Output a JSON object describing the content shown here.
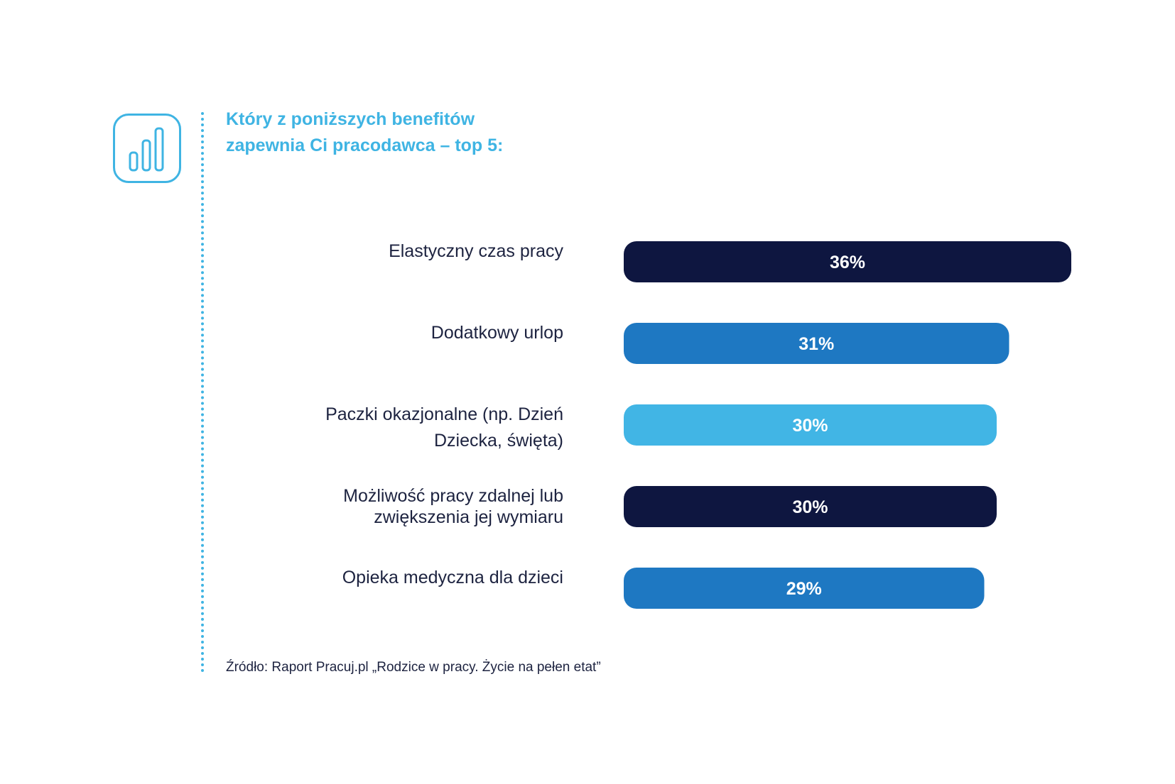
{
  "title_lines": [
    "Który z poniższych benefitów",
    "zapewnia Ci pracodawca – top 5:"
  ],
  "source": "Źródło: Raport Pracuj.pl „Rodzice w pracy. Życie na pełen etat”",
  "icon": "bar-chart-icon",
  "colors": {
    "accent": "#3fb4e3",
    "navy": "#0e1640",
    "blue": "#1e78c2",
    "light_blue": "#41b5e5"
  },
  "chart_data": {
    "type": "bar",
    "orientation": "horizontal",
    "categories": [
      [
        "Elastyczny czas pracy"
      ],
      [
        "Dodatkowy urlop"
      ],
      [
        "Paczki okazjonalne (np. Dzień",
        "Dziecka, święta)"
      ],
      [
        "Możliwość pracy zdalnej lub",
        "zwiększenia jej wymiaru"
      ],
      [
        "Opieka medyczna dla dzieci"
      ]
    ],
    "values": [
      36,
      31,
      30,
      30,
      29
    ],
    "data_labels": [
      "36%",
      "31%",
      "30%",
      "30%",
      "29%"
    ],
    "bar_colors": [
      "#0e1640",
      "#1e78c2",
      "#41b5e5",
      "#0e1640",
      "#1e78c2"
    ],
    "unit": "%",
    "xlim": [
      0,
      36
    ],
    "grid": false
  }
}
